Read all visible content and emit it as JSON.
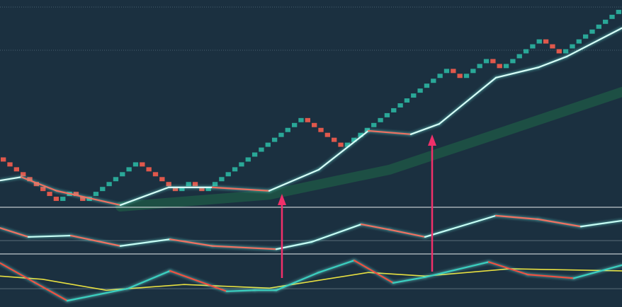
{
  "chart_data": [
    {
      "type": "renko",
      "xlim": [
        0,
        878
      ],
      "ylim": [
        0,
        42
      ],
      "up_color": "#2aa898",
      "down_color": "#e0584c",
      "values": [
        9,
        8,
        7,
        6,
        5,
        4,
        3,
        2,
        1,
        2,
        3,
        2,
        1,
        2,
        3,
        4,
        5,
        6,
        7,
        8,
        9,
        8,
        7,
        6,
        5,
        4,
        3,
        4,
        5,
        4,
        3,
        4,
        5,
        6,
        7,
        8,
        9,
        10,
        11,
        12,
        13,
        14,
        15,
        16,
        17,
        18,
        17,
        16,
        15,
        14,
        13,
        12,
        13,
        14,
        15,
        16,
        17,
        18,
        19,
        20,
        21,
        22,
        23,
        24,
        25,
        26,
        27,
        28,
        27,
        26,
        27,
        28,
        29,
        30,
        29,
        28,
        29,
        30,
        31,
        32,
        33,
        34,
        33,
        32,
        31,
        32,
        33,
        34,
        35,
        36,
        37,
        38,
        39,
        40
      ],
      "series": [
        {
          "color": "#1f5a45",
          "x": [
            170,
            380,
            550,
            700,
            878
          ],
          "values": [
            0,
            2.4,
            7.5,
            14.7,
            23.3
          ]
        },
        {
          "color": "#d8fff8",
          "down_color": "#f07060",
          "x": [
            0,
            30,
            80,
            170,
            238,
            300,
            380,
            450,
            520,
            580,
            620,
            700,
            760,
            800,
            878
          ],
          "values": [
            5.3,
            6,
            3.2,
            0.3,
            3.9,
            3.9,
            3.2,
            7.5,
            15.4,
            14.7,
            16.8,
            26.2,
            28.3,
            30.5,
            36.3
          ]
        }
      ]
    },
    {
      "type": "line",
      "xlim": [
        0,
        878
      ],
      "ylim": [
        0,
        100
      ],
      "hlines": [
        28
      ],
      "hline_color": "#5a6c78",
      "series": [
        {
          "color": "#c8fff6",
          "down_color": "#f07060",
          "x": [
            0,
            40,
            100,
            170,
            240,
            300,
            390,
            440,
            510,
            550,
            600,
            700,
            760,
            820,
            878
          ],
          "values": [
            56,
            36,
            39,
            16,
            31,
            16,
            9,
            25,
            64,
            52,
            36,
            83,
            75,
            59,
            72
          ]
        }
      ]
    },
    {
      "type": "line",
      "xlim": [
        0,
        878
      ],
      "ylim": [
        0,
        100
      ],
      "hlines": [
        35
      ],
      "hline_color": "#5a6c78",
      "series": [
        {
          "color": "#e8e040",
          "x": [
            0,
            60,
            150,
            260,
            380,
            520,
            600,
            720,
            878
          ],
          "values": [
            59,
            53,
            32,
            43,
            36,
            66,
            59,
            73,
            69
          ]
        },
        {
          "color": "#3ad0c0",
          "down_color": "#f05040",
          "x": [
            0,
            50,
            95,
            180,
            240,
            320,
            360,
            390,
            450,
            500,
            555,
            600,
            690,
            745,
            810,
            878
          ],
          "values": [
            84,
            46,
            12,
            35,
            69,
            30,
            32,
            32,
            66,
            89,
            46,
            57,
            86,
            62,
            55,
            80
          ]
        }
      ]
    }
  ]
}
